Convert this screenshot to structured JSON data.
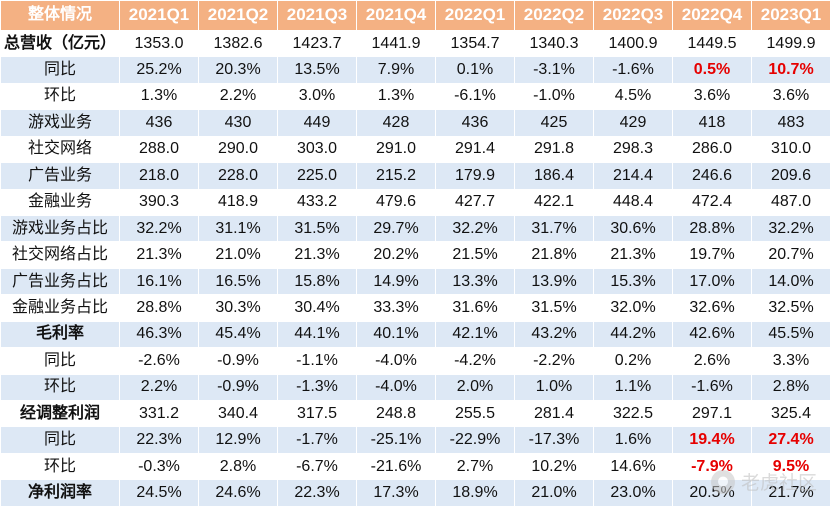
{
  "table": {
    "corner": "整体情况",
    "columns": [
      "2021Q1",
      "2021Q2",
      "2021Q3",
      "2021Q4",
      "2022Q1",
      "2022Q2",
      "2022Q3",
      "2022Q4",
      "2023Q1"
    ],
    "rows": [
      {
        "label": "总营收（亿元）",
        "bold": true,
        "values": [
          "1353.0",
          "1382.6",
          "1423.7",
          "1441.9",
          "1354.7",
          "1340.3",
          "1400.9",
          "1449.5",
          "1499.9"
        ],
        "red": []
      },
      {
        "label": "同比",
        "bold": false,
        "values": [
          "25.2%",
          "20.3%",
          "13.5%",
          "7.9%",
          "0.1%",
          "-3.1%",
          "-1.6%",
          "0.5%",
          "10.7%"
        ],
        "red": [
          7,
          8
        ]
      },
      {
        "label": "环比",
        "bold": false,
        "values": [
          "1.3%",
          "2.2%",
          "3.0%",
          "1.3%",
          "-6.1%",
          "-1.0%",
          "4.5%",
          "3.6%",
          "3.6%"
        ],
        "red": []
      },
      {
        "label": "游戏业务",
        "bold": false,
        "values": [
          "436",
          "430",
          "449",
          "428",
          "436",
          "425",
          "429",
          "418",
          "483"
        ],
        "red": []
      },
      {
        "label": "社交网络",
        "bold": false,
        "values": [
          "288.0",
          "290.0",
          "303.0",
          "291.0",
          "291.4",
          "291.8",
          "298.3",
          "286.0",
          "310.0"
        ],
        "red": []
      },
      {
        "label": "广告业务",
        "bold": false,
        "values": [
          "218.0",
          "228.0",
          "225.0",
          "215.2",
          "179.9",
          "186.4",
          "214.4",
          "246.6",
          "209.6"
        ],
        "red": []
      },
      {
        "label": "金融业务",
        "bold": false,
        "values": [
          "390.3",
          "418.9",
          "433.2",
          "479.6",
          "427.7",
          "422.1",
          "448.4",
          "472.4",
          "487.0"
        ],
        "red": []
      },
      {
        "label": "游戏业务占比",
        "bold": false,
        "values": [
          "32.2%",
          "31.1%",
          "31.5%",
          "29.7%",
          "32.2%",
          "31.7%",
          "30.6%",
          "28.8%",
          "32.2%"
        ],
        "red": []
      },
      {
        "label": "社交网络占比",
        "bold": false,
        "values": [
          "21.3%",
          "21.0%",
          "21.3%",
          "20.2%",
          "21.5%",
          "21.8%",
          "21.3%",
          "19.7%",
          "20.7%"
        ],
        "red": []
      },
      {
        "label": "广告业务占比",
        "bold": false,
        "values": [
          "16.1%",
          "16.5%",
          "15.8%",
          "14.9%",
          "13.3%",
          "13.9%",
          "15.3%",
          "17.0%",
          "14.0%"
        ],
        "red": []
      },
      {
        "label": "金融业务占比",
        "bold": false,
        "values": [
          "28.8%",
          "30.3%",
          "30.4%",
          "33.3%",
          "31.6%",
          "31.5%",
          "32.0%",
          "32.6%",
          "32.5%"
        ],
        "red": []
      },
      {
        "label": "毛利率",
        "bold": true,
        "values": [
          "46.3%",
          "45.4%",
          "44.1%",
          "40.1%",
          "42.1%",
          "43.2%",
          "44.2%",
          "42.6%",
          "45.5%"
        ],
        "red": []
      },
      {
        "label": "同比",
        "bold": false,
        "values": [
          "-2.6%",
          "-0.9%",
          "-1.1%",
          "-4.0%",
          "-4.2%",
          "-2.2%",
          "0.2%",
          "2.6%",
          "3.3%"
        ],
        "red": []
      },
      {
        "label": "环比",
        "bold": false,
        "values": [
          "2.2%",
          "-0.9%",
          "-1.3%",
          "-4.0%",
          "2.0%",
          "1.0%",
          "1.1%",
          "-1.6%",
          "2.8%"
        ],
        "red": []
      },
      {
        "label": "经调整利润",
        "bold": true,
        "values": [
          "331.2",
          "340.4",
          "317.5",
          "248.8",
          "255.5",
          "281.4",
          "322.5",
          "297.1",
          "325.4"
        ],
        "red": []
      },
      {
        "label": "同比",
        "bold": false,
        "values": [
          "22.3%",
          "12.9%",
          "-1.7%",
          "-25.1%",
          "-22.9%",
          "-17.3%",
          "1.6%",
          "19.4%",
          "27.4%"
        ],
        "red": [
          7,
          8
        ]
      },
      {
        "label": "环比",
        "bold": false,
        "values": [
          "-0.3%",
          "2.8%",
          "-6.7%",
          "-21.6%",
          "2.7%",
          "10.2%",
          "14.6%",
          "-7.9%",
          "9.5%"
        ],
        "red": [
          7,
          8
        ]
      },
      {
        "label": "净利润率",
        "bold": true,
        "values": [
          "24.5%",
          "24.6%",
          "22.3%",
          "17.3%",
          "18.9%",
          "21.0%",
          "23.0%",
          "20.5%",
          "21.7%"
        ],
        "red": []
      }
    ]
  },
  "watermark": {
    "text": "老虎社区"
  },
  "colors": {
    "header_bg": "#f4b183",
    "stripe_bg": "#dde8f5",
    "highlight_red": "#e60000"
  }
}
